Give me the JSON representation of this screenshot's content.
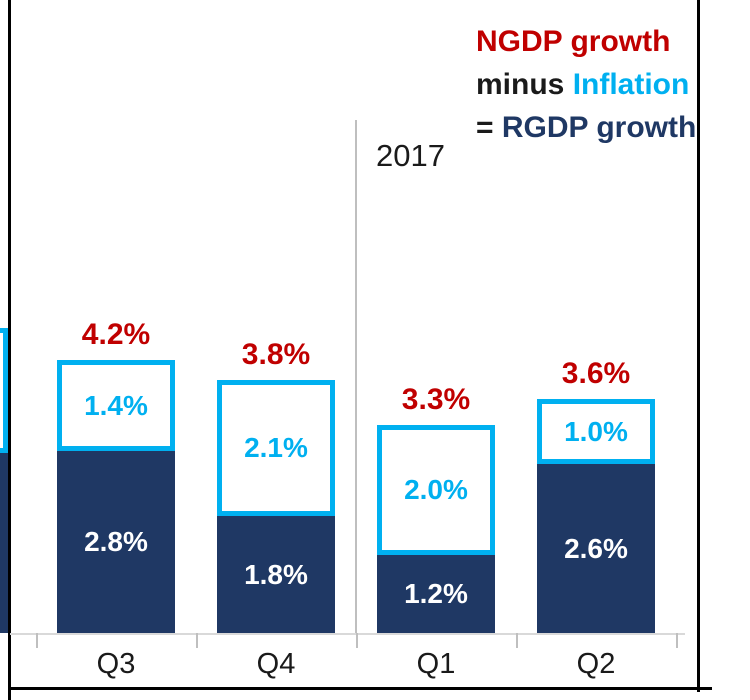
{
  "legend": {
    "line1": "NGDP growth",
    "line2_minus": "minus ",
    "line2_inflation": "Inflation",
    "line3_equals": "= ",
    "line3_rgdp": "RGDP growth"
  },
  "year_label": "2017",
  "colors": {
    "ngdp_red": "#C00000",
    "inflation_cyan": "#00B0F0",
    "rgdp_navy": "#1F3864"
  },
  "chart_data": {
    "type": "bar",
    "stacked": true,
    "title": "NGDP growth minus Inflation = RGDP growth",
    "categories": [
      "Q3",
      "Q4",
      "Q1",
      "Q2"
    ],
    "series": [
      {
        "name": "RGDP growth",
        "color": "#1F3864",
        "values": [
          2.8,
          1.8,
          1.2,
          2.6
        ]
      },
      {
        "name": "Inflation",
        "color": "#00B0F0",
        "values": [
          1.4,
          2.1,
          2.0,
          1.0
        ]
      }
    ],
    "totals": {
      "name": "NGDP growth",
      "color": "#C00000",
      "values": [
        4.2,
        3.8,
        3.3,
        3.6
      ]
    },
    "annotations": {
      "year_divider_after_category": "Q4",
      "year_text": "2017"
    },
    "ylim": [
      0,
      5
    ],
    "grid": false,
    "legend_position": "top-right",
    "bars": [
      {
        "category": "Q3",
        "rgdp": 2.8,
        "inflation": 1.4,
        "total": 4.2,
        "rgdp_label": "2.8%",
        "inflation_label": "1.4%",
        "total_label": "4.2%"
      },
      {
        "category": "Q4",
        "rgdp": 1.8,
        "inflation": 2.1,
        "total": 3.8,
        "rgdp_label": "1.8%",
        "inflation_label": "2.1%",
        "total_label": "3.8%"
      },
      {
        "category": "Q1",
        "rgdp": 1.2,
        "inflation": 2.0,
        "total": 3.3,
        "rgdp_label": "1.2%",
        "inflation_label": "2.0%",
        "total_label": "3.3%"
      },
      {
        "category": "Q2",
        "rgdp": 2.6,
        "inflation": 1.0,
        "total": 3.6,
        "rgdp_label": "2.6%",
        "inflation_label": "1.0%",
        "total_label": "3.6%"
      }
    ]
  }
}
